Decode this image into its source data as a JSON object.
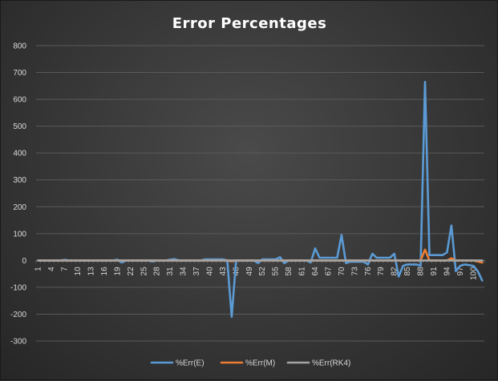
{
  "chart_data": {
    "type": "line",
    "title": "Error Percentages",
    "xlabel": "",
    "ylabel": "",
    "ylim": [
      -300,
      800
    ],
    "yticks": [
      -300,
      -200,
      -100,
      0,
      100,
      200,
      300,
      400,
      500,
      600,
      700,
      800
    ],
    "xlim": [
      1,
      102
    ],
    "xtick_labels": [
      1,
      4,
      7,
      10,
      13,
      16,
      19,
      22,
      25,
      28,
      31,
      34,
      37,
      40,
      43,
      46,
      49,
      52,
      55,
      58,
      61,
      64,
      67,
      70,
      73,
      76,
      79,
      82,
      85,
      88,
      91,
      94,
      97,
      100
    ],
    "grid": true,
    "legend_position": "bottom",
    "colors": {
      "E": "#5b9bd5",
      "M": "#ed7d31",
      "RK4": "#a5a5a5"
    },
    "series": [
      {
        "name": "%Err(E)",
        "color": "#5b9bd5",
        "points": [
          [
            1,
            0
          ],
          [
            6,
            0
          ],
          [
            7,
            2
          ],
          [
            8,
            0
          ],
          [
            18,
            0
          ],
          [
            19,
            3
          ],
          [
            20,
            -8
          ],
          [
            21,
            0
          ],
          [
            26,
            0
          ],
          [
            27,
            -4
          ],
          [
            28,
            0
          ],
          [
            30,
            0
          ],
          [
            31,
            3
          ],
          [
            32,
            5
          ],
          [
            33,
            0
          ],
          [
            38,
            0
          ],
          [
            39,
            4
          ],
          [
            40,
            4
          ],
          [
            43,
            4
          ],
          [
            44,
            0
          ],
          [
            45,
            -210
          ],
          [
            46,
            0
          ],
          [
            50,
            0
          ],
          [
            51,
            -10
          ],
          [
            52,
            4
          ],
          [
            55,
            4
          ],
          [
            56,
            12
          ],
          [
            57,
            -10
          ],
          [
            58,
            0
          ],
          [
            62,
            0
          ],
          [
            63,
            -8
          ],
          [
            64,
            45
          ],
          [
            65,
            10
          ],
          [
            69,
            10
          ],
          [
            70,
            95
          ],
          [
            71,
            -10
          ],
          [
            72,
            -5
          ],
          [
            75,
            -5
          ],
          [
            76,
            -15
          ],
          [
            77,
            25
          ],
          [
            78,
            10
          ],
          [
            81,
            10
          ],
          [
            82,
            25
          ],
          [
            83,
            -60
          ],
          [
            84,
            -20
          ],
          [
            85,
            -15
          ],
          [
            87,
            -15
          ],
          [
            88,
            -20
          ],
          [
            89,
            665
          ],
          [
            90,
            20
          ],
          [
            93,
            20
          ],
          [
            94,
            30
          ],
          [
            95,
            130
          ],
          [
            96,
            -40
          ],
          [
            97,
            -20
          ],
          [
            98,
            -15
          ],
          [
            100,
            -20
          ],
          [
            101,
            -40
          ],
          [
            102,
            -75
          ]
        ]
      },
      {
        "name": "%Err(M)",
        "color": "#ed7d31",
        "points": [
          [
            1,
            0
          ],
          [
            44,
            0
          ],
          [
            45,
            -3
          ],
          [
            46,
            0
          ],
          [
            88,
            0
          ],
          [
            89,
            40
          ],
          [
            90,
            0
          ],
          [
            94,
            0
          ],
          [
            95,
            8
          ],
          [
            96,
            0
          ],
          [
            100,
            0
          ],
          [
            102,
            -8
          ]
        ]
      },
      {
        "name": "%Err(RK4)",
        "color": "#a5a5a5",
        "points": [
          [
            1,
            0
          ],
          [
            102,
            0
          ]
        ]
      }
    ]
  }
}
